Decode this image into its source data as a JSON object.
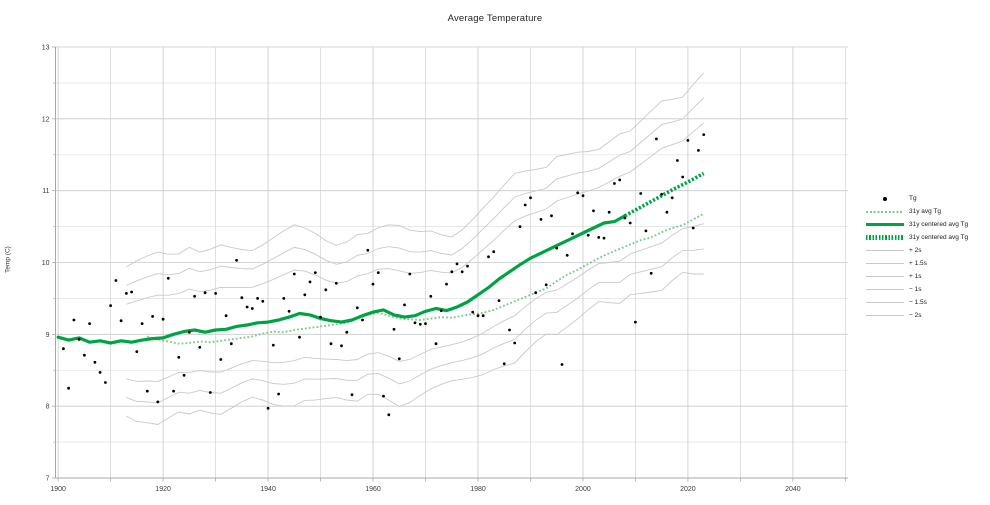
{
  "title": "Average Temperature",
  "ylabel": "Temp (C)",
  "axes": {
    "xlim": [
      1899.5,
      2050.5
    ],
    "ylim": [
      7,
      13
    ],
    "x_tick_years": [
      1900,
      1920,
      1940,
      1960,
      1980,
      2000,
      2020,
      2040
    ],
    "x_tick_labels": [
      "1900",
      "1920",
      "1940",
      "1960",
      "1980",
      "2000",
      "2020",
      "2040"
    ],
    "y_tick_values": [
      7,
      8,
      9,
      10,
      11,
      12,
      13
    ],
    "y_tick_labels": [
      "7",
      "8",
      "9",
      "10",
      "11",
      "12",
      "13"
    ],
    "x_minor_step": 10,
    "y_minor_step": 0.5
  },
  "colors": {
    "green": "#00a344",
    "light_green": "#7cc98a",
    "band_gray": "#c9c9c9",
    "grid_major": "#c9c9c9",
    "grid_minor": "#e4e4e4",
    "grid_minor_v": "#d8d8d8",
    "spine": "#a8a8a8",
    "scatter": "#000000",
    "text": "#3a3a3a"
  },
  "legend": {
    "items": [
      {
        "label": "Tg",
        "swatch": "dot"
      },
      {
        "label": "31y avg Tg",
        "swatch": "dotted"
      },
      {
        "label": "31y centered avg Tg",
        "swatch": "solid"
      },
      {
        "label": "31y centered avg Tg",
        "swatch": "hatched"
      },
      {
        "label": "+ 2s",
        "swatch": "gray"
      },
      {
        "label": "+ 1.5s",
        "swatch": "gray"
      },
      {
        "label": "+ 1s",
        "swatch": "gray"
      },
      {
        "label": "− 1s",
        "swatch": "gray"
      },
      {
        "label": "− 1.5s",
        "swatch": "gray"
      },
      {
        "label": "− 2s",
        "swatch": "gray"
      }
    ]
  },
  "chart_data": {
    "type": "line",
    "title": "Average Temperature",
    "xlabel": "",
    "ylabel": "Temp (C)",
    "xlim": [
      1899.5,
      2050.5
    ],
    "ylim": [
      7,
      13
    ],
    "grid": "major-and-minor",
    "legend_position": "outside-right",
    "series": [
      {
        "name": "Tg",
        "type": "scatter",
        "points": [
          [
            1901,
            8.8
          ],
          [
            1902,
            8.25
          ],
          [
            1903,
            9.2
          ],
          [
            1904,
            8.93
          ],
          [
            1905,
            8.71
          ],
          [
            1906,
            9.15
          ],
          [
            1907,
            8.61
          ],
          [
            1908,
            8.47
          ],
          [
            1909,
            8.33
          ],
          [
            1910,
            9.4
          ],
          [
            1911,
            9.75
          ],
          [
            1912,
            9.19
          ],
          [
            1913,
            9.57
          ],
          [
            1914,
            9.59
          ],
          [
            1915,
            8.76
          ],
          [
            1916,
            9.15
          ],
          [
            1917,
            8.21
          ],
          [
            1918,
            9.25
          ],
          [
            1919,
            8.06
          ],
          [
            1920,
            9.21
          ],
          [
            1921,
            9.78
          ],
          [
            1922,
            8.21
          ],
          [
            1923,
            8.68
          ],
          [
            1924,
            8.43
          ],
          [
            1925,
            9.03
          ],
          [
            1926,
            9.53
          ],
          [
            1927,
            8.82
          ],
          [
            1928,
            9.58
          ],
          [
            1929,
            8.19
          ],
          [
            1930,
            9.57
          ],
          [
            1931,
            8.65
          ],
          [
            1932,
            9.26
          ],
          [
            1933,
            8.87
          ],
          [
            1934,
            10.03
          ],
          [
            1935,
            9.51
          ],
          [
            1936,
            9.38
          ],
          [
            1937,
            9.36
          ],
          [
            1938,
            9.5
          ],
          [
            1939,
            9.46
          ],
          [
            1940,
            7.97
          ],
          [
            1941,
            8.85
          ],
          [
            1942,
            8.17
          ],
          [
            1943,
            9.5
          ],
          [
            1944,
            9.32
          ],
          [
            1945,
            9.84
          ],
          [
            1946,
            8.96
          ],
          [
            1947,
            9.55
          ],
          [
            1948,
            9.73
          ],
          [
            1949,
            9.86
          ],
          [
            1950,
            9.24
          ],
          [
            1951,
            9.62
          ],
          [
            1952,
            8.87
          ],
          [
            1953,
            9.71
          ],
          [
            1954,
            8.84
          ],
          [
            1955,
            9.03
          ],
          [
            1956,
            8.16
          ],
          [
            1957,
            9.37
          ],
          [
            1958,
            9.2
          ],
          [
            1959,
            10.17
          ],
          [
            1960,
            9.7
          ],
          [
            1961,
            9.86
          ],
          [
            1962,
            8.14
          ],
          [
            1963,
            7.88
          ],
          [
            1964,
            9.07
          ],
          [
            1965,
            8.66
          ],
          [
            1966,
            9.41
          ],
          [
            1967,
            9.84
          ],
          [
            1968,
            9.16
          ],
          [
            1969,
            9.14
          ],
          [
            1970,
            9.15
          ],
          [
            1971,
            9.53
          ],
          [
            1972,
            8.87
          ],
          [
            1973,
            9.33
          ],
          [
            1974,
            9.7
          ],
          [
            1975,
            9.87
          ],
          [
            1976,
            9.98
          ],
          [
            1977,
            9.87
          ],
          [
            1978,
            9.95
          ],
          [
            1979,
            9.31
          ],
          [
            1980,
            9.26
          ],
          [
            1981,
            9.26
          ],
          [
            1982,
            10.08
          ],
          [
            1983,
            10.15
          ],
          [
            1984,
            9.47
          ],
          [
            1985,
            8.59
          ],
          [
            1986,
            9.06
          ],
          [
            1987,
            8.88
          ],
          [
            1988,
            10.5
          ],
          [
            1989,
            10.8
          ],
          [
            1990,
            10.9
          ],
          [
            1991,
            9.58
          ],
          [
            1992,
            10.6
          ],
          [
            1993,
            9.69
          ],
          [
            1994,
            10.65
          ],
          [
            1995,
            10.2
          ],
          [
            1996,
            8.58
          ],
          [
            1997,
            10.1
          ],
          [
            1998,
            10.4
          ],
          [
            1999,
            10.97
          ],
          [
            2000,
            10.93
          ],
          [
            2001,
            10.38
          ],
          [
            2002,
            10.72
          ],
          [
            2003,
            10.35
          ],
          [
            2004,
            10.34
          ],
          [
            2005,
            10.7
          ],
          [
            2006,
            11.1
          ],
          [
            2007,
            11.15
          ],
          [
            2008,
            10.62
          ],
          [
            2009,
            10.55
          ],
          [
            2010,
            9.17
          ],
          [
            2011,
            10.96
          ],
          [
            2012,
            10.44
          ],
          [
            2013,
            9.85
          ],
          [
            2014,
            11.72
          ],
          [
            2015,
            10.95
          ],
          [
            2016,
            10.7
          ],
          [
            2017,
            10.9
          ],
          [
            2018,
            11.42
          ],
          [
            2019,
            11.19
          ],
          [
            2020,
            11.7
          ],
          [
            2021,
            10.48
          ],
          [
            2022,
            11.56
          ],
          [
            2023,
            11.78
          ]
        ]
      },
      {
        "name": "31y avg Tg",
        "type": "line",
        "style": "dotted",
        "x_start": 1917,
        "x_step": 2,
        "y": [
          8.97,
          8.93,
          8.9,
          8.87,
          8.88,
          8.9,
          8.89,
          8.91,
          8.93,
          8.95,
          8.97,
          9.01,
          9.04,
          9.03,
          9.06,
          9.08,
          9.1,
          9.12,
          9.14,
          9.16,
          9.22,
          9.27,
          9.3,
          9.26,
          9.22,
          9.21,
          9.2,
          9.22,
          9.24,
          9.23,
          9.26,
          9.28,
          9.3,
          9.34,
          9.4,
          9.46,
          9.52,
          9.58,
          9.64,
          9.74,
          9.83,
          9.9,
          9.98,
          10.06,
          10.13,
          10.19,
          10.25,
          10.31,
          10.35,
          10.42,
          10.48,
          10.52,
          10.6,
          10.68
        ]
      },
      {
        "name": "31y centered avg Tg",
        "type": "line",
        "style": "solid",
        "x_start": 1900,
        "x_step": 2,
        "y": [
          8.96,
          8.92,
          8.95,
          8.89,
          8.91,
          8.88,
          8.91,
          8.89,
          8.92,
          8.94,
          8.95,
          9.0,
          9.04,
          9.06,
          9.03,
          9.06,
          9.07,
          9.11,
          9.13,
          9.16,
          9.17,
          9.2,
          9.24,
          9.29,
          9.27,
          9.22,
          9.19,
          9.17,
          9.2,
          9.26,
          9.31,
          9.34,
          9.27,
          9.24,
          9.26,
          9.32,
          9.36,
          9.33,
          9.38,
          9.45,
          9.55,
          9.65,
          9.77,
          9.87,
          9.97,
          10.06,
          10.13,
          10.2,
          10.27,
          10.34,
          10.41,
          10.48,
          10.55,
          10.57,
          10.65
        ]
      },
      {
        "name": "31y centered avg Tg",
        "type": "line",
        "style": "dense-dash",
        "x": [
          2008,
          2011,
          2014,
          2017,
          2020,
          2023
        ],
        "y": [
          10.65,
          10.77,
          10.89,
          11.01,
          11.12,
          11.24
        ]
      }
    ],
    "bands": {
      "note": "gray lines = centered avg ± k·s",
      "x_start": 1913,
      "x_step": 2,
      "s": [
        0.52,
        0.56,
        0.58,
        0.6,
        0.57,
        0.55,
        0.58,
        0.55,
        0.57,
        0.59,
        0.56,
        0.53,
        0.51,
        0.54,
        0.58,
        0.61,
        0.63,
        0.6,
        0.58,
        0.55,
        0.53,
        0.55,
        0.58,
        0.56,
        0.58,
        0.61,
        0.63,
        0.6,
        0.57,
        0.55,
        0.52,
        0.5,
        0.52,
        0.55,
        0.58,
        0.6,
        0.63,
        0.66,
        0.63,
        0.6,
        0.58,
        0.62,
        0.6,
        0.58,
        0.55,
        0.53,
        0.56,
        0.59,
        0.57,
        0.6,
        0.63,
        0.66,
        0.63,
        0.61,
        0.66,
        0.7
      ],
      "k": [
        2,
        1.5,
        1,
        -1,
        -1.5,
        -2
      ],
      "labels": [
        "+ 2s",
        "+ 1.5s",
        "+ 1s",
        "− 1s",
        "− 1.5s",
        "− 2s"
      ]
    }
  }
}
